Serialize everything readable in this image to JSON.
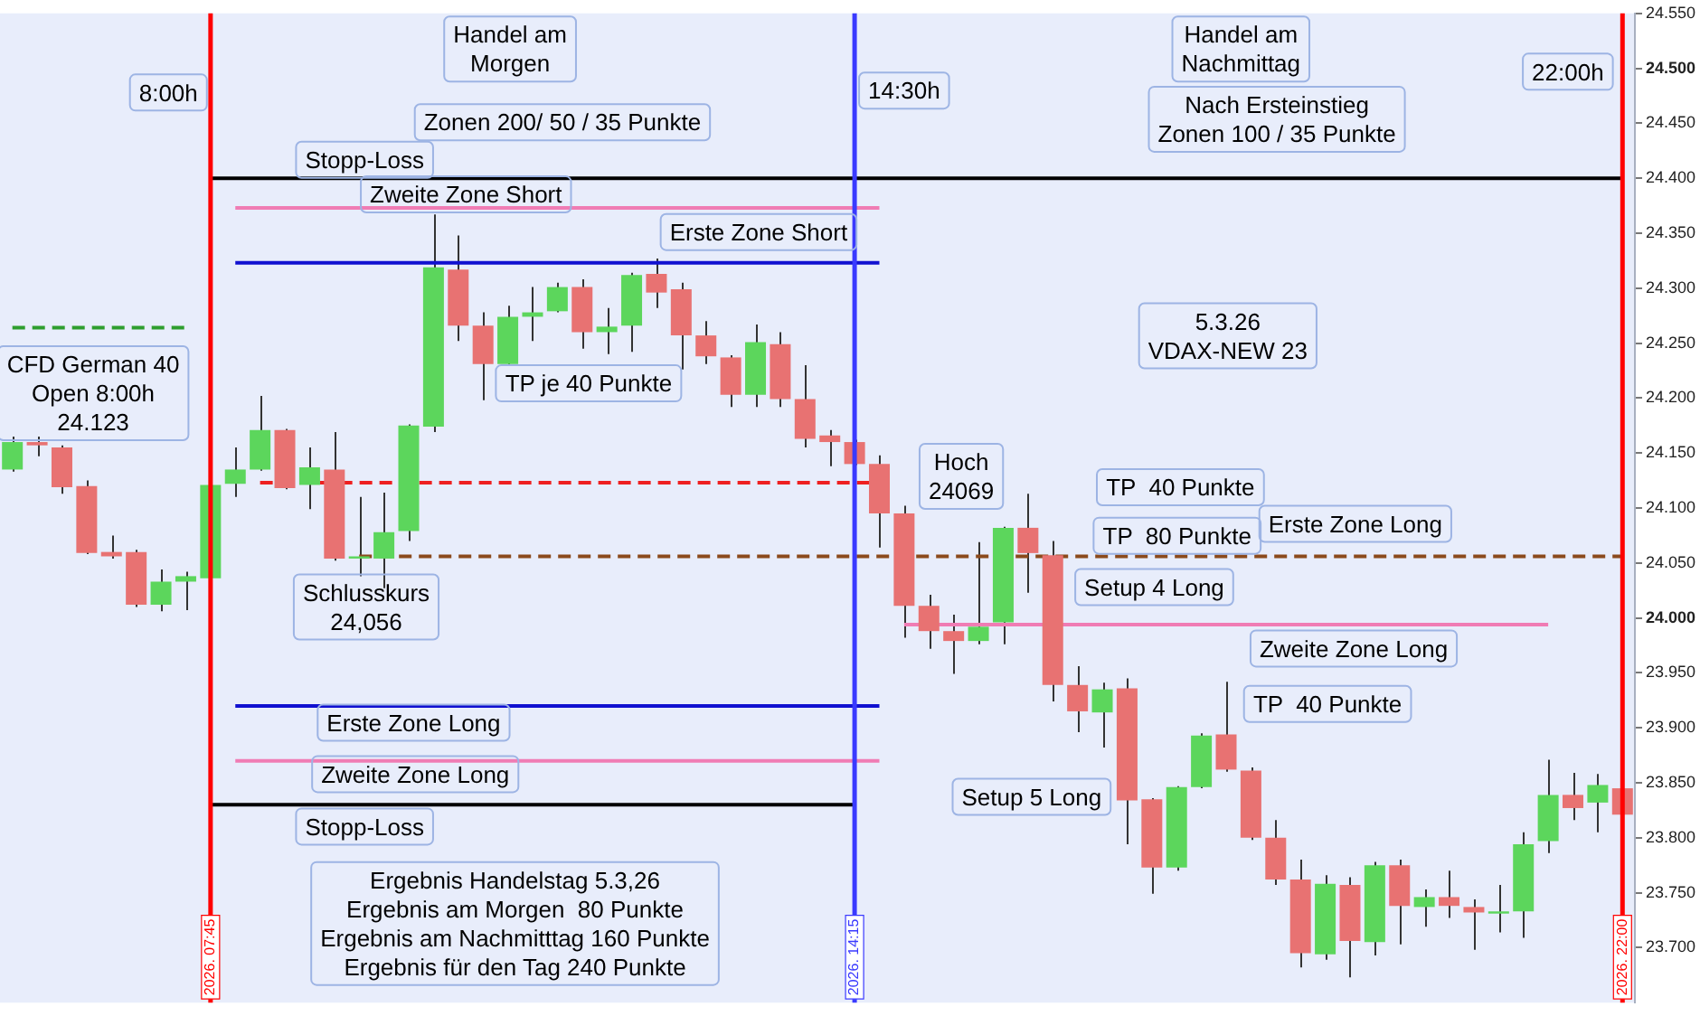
{
  "chart_data": {
    "type": "candlestick",
    "categories": [
      null,
      null,
      null,
      null,
      null,
      null,
      null,
      null,
      "2026. 07:45",
      null,
      null,
      null,
      null,
      null,
      null,
      null,
      null,
      null,
      null,
      null,
      null,
      null,
      null,
      null,
      null,
      null,
      null,
      null,
      null,
      null,
      null,
      null,
      null,
      null,
      "2026. 14:15",
      null,
      null,
      null,
      null,
      null,
      null,
      null,
      null,
      null,
      null,
      null,
      null,
      null,
      null,
      null,
      null,
      null,
      null,
      null,
      null,
      null,
      null,
      null,
      null,
      null,
      null,
      null,
      null,
      null,
      null,
      "2026. 22:00"
    ],
    "ohlc": [
      [
        24.135,
        24.165,
        24.133,
        24.16
      ],
      [
        24.16,
        24.165,
        24.147,
        24.157
      ],
      [
        24.155,
        24.157,
        24.113,
        24.119
      ],
      [
        24.12,
        24.125,
        24.058,
        24.059
      ],
      [
        24.06,
        24.075,
        24.054,
        24.056
      ],
      [
        24.06,
        24.062,
        24.01,
        24.012
      ],
      [
        24.012,
        24.044,
        24.006,
        24.033
      ],
      [
        24.033,
        24.042,
        24.007,
        24.038
      ],
      [
        24.036,
        24.122,
        24.034,
        24.121
      ],
      [
        24.122,
        24.155,
        24.11,
        24.135
      ],
      [
        24.135,
        24.202,
        24.134,
        24.171
      ],
      [
        24.171,
        24.172,
        24.117,
        24.118
      ],
      [
        24.121,
        24.155,
        24.099,
        24.137
      ],
      [
        24.135,
        24.169,
        24.052,
        24.054
      ],
      [
        24.054,
        24.11,
        24.038,
        24.056
      ],
      [
        24.054,
        24.114,
        24.027,
        24.078
      ],
      [
        24.079,
        24.176,
        24.07,
        24.175
      ],
      [
        24.174,
        24.367,
        24.169,
        24.319
      ],
      [
        24.317,
        24.348,
        24.252,
        24.266
      ],
      [
        24.266,
        24.278,
        24.198,
        24.231
      ],
      [
        24.231,
        24.284,
        24.23,
        24.274
      ],
      [
        24.274,
        24.301,
        24.252,
        24.278
      ],
      [
        24.279,
        24.305,
        24.278,
        24.301
      ],
      [
        24.301,
        24.308,
        24.245,
        24.26
      ],
      [
        24.26,
        24.282,
        24.24,
        24.265
      ],
      [
        24.266,
        24.314,
        24.242,
        24.312
      ],
      [
        24.313,
        24.327,
        24.282,
        24.296
      ],
      [
        24.299,
        24.305,
        24.226,
        24.257
      ],
      [
        24.257,
        24.27,
        24.231,
        24.238
      ],
      [
        24.237,
        24.239,
        24.192,
        24.203
      ],
      [
        24.203,
        24.267,
        24.192,
        24.251
      ],
      [
        24.249,
        24.26,
        24.192,
        24.199
      ],
      [
        24.199,
        24.23,
        24.155,
        24.163
      ],
      [
        24.166,
        24.171,
        24.138,
        24.16
      ],
      [
        24.16,
        24.162,
        24.139,
        24.14
      ],
      [
        24.14,
        24.148,
        24.064,
        24.095
      ],
      [
        24.095,
        24.102,
        23.982,
        24.011
      ],
      [
        24.011,
        24.021,
        23.972,
        23.988
      ],
      [
        23.988,
        24.003,
        23.949,
        23.979
      ],
      [
        23.979,
        24.069,
        23.976,
        23.992
      ],
      [
        23.996,
        24.083,
        23.976,
        24.082
      ],
      [
        24.082,
        24.113,
        24.023,
        24.059
      ],
      [
        24.057,
        24.07,
        23.924,
        23.939
      ],
      [
        23.939,
        23.956,
        23.896,
        23.915
      ],
      [
        23.914,
        23.941,
        23.882,
        23.935
      ],
      [
        23.936,
        23.945,
        23.794,
        23.834
      ],
      [
        23.835,
        23.836,
        23.749,
        23.773
      ],
      [
        23.773,
        23.847,
        23.77,
        23.846
      ],
      [
        23.846,
        23.895,
        23.845,
        23.893
      ],
      [
        23.894,
        23.942,
        23.86,
        23.862
      ],
      [
        23.861,
        23.864,
        23.798,
        23.8
      ],
      [
        23.8,
        23.816,
        23.757,
        23.762
      ],
      [
        23.762,
        23.78,
        23.682,
        23.695
      ],
      [
        23.694,
        23.766,
        23.689,
        23.758
      ],
      [
        23.757,
        23.764,
        23.673,
        23.706
      ],
      [
        23.705,
        23.778,
        23.693,
        23.775
      ],
      [
        23.775,
        23.78,
        23.703,
        23.738
      ],
      [
        23.737,
        23.753,
        23.719,
        23.746
      ],
      [
        23.746,
        23.77,
        23.727,
        23.738
      ],
      [
        23.737,
        23.744,
        23.698,
        23.732
      ],
      [
        23.731,
        23.757,
        23.714,
        23.733
      ],
      [
        23.733,
        23.805,
        23.709,
        23.794
      ],
      [
        23.797,
        23.871,
        23.786,
        23.839
      ],
      [
        23.839,
        23.859,
        23.816,
        23.827
      ],
      [
        23.832,
        23.858,
        23.805,
        23.848
      ],
      [
        23.845,
        23.846,
        23.82,
        23.821
      ]
    ],
    "colors": [
      "#5cd65c",
      "#e87272",
      "#e87272",
      "#e87272",
      "#e87272",
      "#e87272",
      "#5cd65c",
      "#5cd65c",
      "#5cd65c",
      "#5cd65c",
      "#5cd65c",
      "#e87272",
      "#5cd65c",
      "#e87272",
      "#5cd65c",
      "#5cd65c",
      "#5cd65c",
      "#5cd65c",
      "#e87272",
      "#e87272",
      "#5cd65c",
      "#5cd65c",
      "#5cd65c",
      "#e87272",
      "#5cd65c",
      "#5cd65c",
      "#e87272",
      "#e87272",
      "#e87272",
      "#e87272",
      "#5cd65c",
      "#e87272",
      "#e87272",
      "#e87272",
      "#e87272",
      "#e87272",
      "#e87272",
      "#e87272",
      "#e87272",
      "#5cd65c",
      "#5cd65c",
      "#e87272",
      "#e87272",
      "#e87272",
      "#5cd65c",
      "#e87272",
      "#e87272",
      "#5cd65c",
      "#5cd65c",
      "#e87272",
      "#e87272",
      "#e87272",
      "#e87272",
      "#5cd65c",
      "#e87272",
      "#5cd65c",
      "#e87272",
      "#5cd65c",
      "#e87272",
      "#e87272",
      "#5cd65c",
      "#5cd65c",
      "#5cd65c",
      "#e87272",
      "#5cd65c",
      "#e87272"
    ],
    "series": [
      {
        "type": "line",
        "color": "#2e9e2e",
        "line_style": "dashed",
        "values": [
          24.264,
          24.264,
          24.264,
          24.264,
          24.264,
          24.264,
          24.264,
          24.264,
          null,
          null,
          null,
          null,
          null,
          null,
          null,
          null,
          null,
          null,
          null,
          null,
          null,
          null,
          null,
          null,
          null,
          null,
          null,
          null,
          null,
          null,
          null,
          null,
          null,
          null,
          null,
          null,
          null,
          null,
          null,
          null,
          null,
          null,
          null,
          null,
          null,
          null,
          null,
          null,
          null,
          null,
          null,
          null,
          null,
          null,
          null,
          null,
          null,
          null,
          null,
          null,
          null,
          null,
          null,
          null,
          null,
          null
        ]
      },
      {
        "type": "line",
        "color": "#000000",
        "line_style": "solid",
        "values": [
          null,
          null,
          null,
          null,
          null,
          null,
          null,
          null,
          24.4,
          24.4,
          24.4,
          24.4,
          24.4,
          24.4,
          24.4,
          24.4,
          24.4,
          24.4,
          24.4,
          24.4,
          24.4,
          24.4,
          24.4,
          24.4,
          24.4,
          24.4,
          24.4,
          24.4,
          24.4,
          24.4,
          24.4,
          24.4,
          24.4,
          24.4,
          24.4,
          24.4,
          24.4,
          24.4,
          24.4,
          24.4,
          24.4,
          24.4,
          24.4,
          24.4,
          24.4,
          24.4,
          24.4,
          24.4,
          24.4,
          24.4,
          24.4,
          24.4,
          24.4,
          24.4,
          24.4,
          24.4,
          24.4,
          24.4,
          24.4,
          24.4,
          24.4,
          24.4,
          24.4,
          24.4,
          24.4,
          24.4
        ]
      },
      {
        "type": "line",
        "color": "#f07cb4",
        "line_style": "solid",
        "values": [
          null,
          null,
          null,
          null,
          null,
          null,
          null,
          null,
          null,
          24.373,
          24.373,
          24.373,
          24.373,
          24.373,
          24.373,
          24.373,
          24.373,
          24.373,
          24.373,
          24.373,
          24.373,
          24.373,
          24.373,
          24.373,
          24.373,
          24.373,
          24.373,
          24.373,
          24.373,
          24.373,
          24.373,
          24.373,
          24.373,
          24.373,
          24.373,
          24.373,
          null,
          null,
          null,
          null,
          null,
          null,
          null,
          null,
          null,
          null,
          null,
          null,
          null,
          null,
          null,
          null,
          null,
          null,
          null,
          null,
          null,
          null,
          null,
          null,
          null,
          null,
          null,
          null,
          null,
          null
        ]
      },
      {
        "type": "line",
        "color": "#1010d0",
        "line_style": "solid",
        "values": [
          null,
          null,
          null,
          null,
          null,
          null,
          null,
          null,
          null,
          24.323,
          24.323,
          24.323,
          24.323,
          24.323,
          24.323,
          24.323,
          24.323,
          24.323,
          24.323,
          24.323,
          24.323,
          24.323,
          24.323,
          24.323,
          24.323,
          24.323,
          24.323,
          24.323,
          24.323,
          24.323,
          24.323,
          24.323,
          24.323,
          24.323,
          24.323,
          24.323,
          null,
          null,
          null,
          null,
          null,
          null,
          null,
          null,
          null,
          null,
          null,
          null,
          null,
          null,
          null,
          null,
          null,
          null,
          null,
          null,
          null,
          null,
          null,
          null,
          null,
          null,
          null,
          null,
          null,
          null
        ]
      },
      {
        "type": "line",
        "color": "#ee2020",
        "line_style": "dashed",
        "values": [
          null,
          null,
          null,
          null,
          null,
          null,
          null,
          null,
          null,
          null,
          24.123,
          24.123,
          24.123,
          24.123,
          24.123,
          24.123,
          null,
          24.123,
          24.123,
          24.123,
          24.123,
          24.123,
          24.123,
          24.123,
          24.123,
          24.123,
          24.123,
          24.123,
          24.123,
          24.123,
          24.123,
          24.123,
          24.123,
          24.123,
          24.123,
          24.123,
          null,
          null,
          null,
          null,
          null,
          null,
          null,
          null,
          null,
          null,
          null,
          null,
          null,
          null,
          null,
          null,
          null,
          null,
          null,
          null,
          null,
          null,
          null,
          null,
          null,
          null,
          null,
          null,
          null,
          null
        ]
      },
      {
        "type": "line",
        "color": "#8b4a1c",
        "line_style": "dashed",
        "values": [
          null,
          null,
          null,
          null,
          null,
          null,
          null,
          null,
          null,
          null,
          null,
          null,
          null,
          null,
          24.056,
          null,
          24.056,
          24.056,
          24.056,
          24.056,
          24.056,
          24.056,
          24.056,
          24.056,
          24.056,
          24.056,
          24.056,
          24.056,
          24.056,
          24.056,
          24.056,
          24.056,
          24.056,
          24.056,
          24.056,
          24.056,
          null,
          24.056,
          24.056,
          24.056,
          null,
          24.056,
          24.056,
          24.056,
          24.056,
          24.056,
          24.056,
          24.056,
          24.056,
          24.056,
          24.056,
          24.056,
          24.056,
          24.056,
          24.056,
          24.056,
          24.056,
          24.056,
          24.056,
          24.056,
          24.056,
          24.056,
          24.056,
          24.056,
          24.056,
          24.056
        ]
      },
      {
        "type": "line",
        "color": "#f07cb4",
        "line_style": "solid",
        "values": [
          null,
          null,
          null,
          null,
          null,
          null,
          null,
          null,
          null,
          null,
          null,
          null,
          null,
          null,
          null,
          null,
          null,
          null,
          null,
          null,
          null,
          null,
          null,
          null,
          null,
          null,
          null,
          null,
          null,
          null,
          null,
          null,
          null,
          null,
          null,
          null,
          23.994,
          23.994,
          23.994,
          23.994,
          23.994,
          23.994,
          null,
          23.994,
          23.994,
          23.994,
          23.994,
          23.994,
          23.994,
          23.994,
          23.994,
          23.994,
          23.994,
          23.994,
          23.994,
          23.994,
          23.994,
          23.994,
          23.994,
          23.994,
          23.994,
          23.994,
          23.994,
          null,
          null,
          null
        ]
      },
      {
        "type": "line",
        "color": "#1010d0",
        "line_style": "solid",
        "values": [
          null,
          null,
          null,
          null,
          null,
          null,
          null,
          null,
          null,
          23.92,
          23.92,
          23.92,
          23.92,
          23.92,
          23.92,
          23.92,
          23.92,
          23.92,
          23.92,
          23.92,
          23.92,
          23.92,
          23.92,
          23.92,
          23.92,
          23.92,
          23.92,
          23.92,
          23.92,
          23.92,
          23.92,
          23.92,
          23.92,
          23.92,
          23.92,
          23.92,
          null,
          null,
          null,
          null,
          null,
          null,
          null,
          null,
          null,
          null,
          null,
          null,
          null,
          null,
          null,
          null,
          null,
          null,
          null,
          null,
          null,
          null,
          null,
          null,
          null,
          null,
          null,
          null,
          null,
          null
        ]
      },
      {
        "type": "line",
        "color": "#f07cb4",
        "line_style": "solid",
        "values": [
          null,
          null,
          null,
          null,
          null,
          null,
          null,
          null,
          null,
          23.87,
          23.87,
          23.87,
          23.87,
          23.87,
          23.87,
          23.87,
          23.87,
          23.87,
          23.87,
          23.87,
          23.87,
          23.87,
          23.87,
          23.87,
          23.87,
          23.87,
          23.87,
          23.87,
          23.87,
          23.87,
          23.87,
          23.87,
          23.87,
          23.87,
          23.87,
          23.87,
          null,
          null,
          null,
          null,
          null,
          null,
          null,
          null,
          null,
          null,
          null,
          null,
          null,
          null,
          null,
          null,
          null,
          null,
          null,
          null,
          null,
          null,
          null,
          null,
          null,
          null,
          null,
          null,
          null,
          null
        ]
      },
      {
        "type": "line",
        "color": "#000000",
        "line_style": "solid",
        "values": [
          null,
          null,
          null,
          null,
          null,
          null,
          null,
          null,
          23.83,
          23.83,
          23.83,
          23.83,
          23.83,
          23.83,
          23.83,
          23.83,
          23.83,
          23.83,
          23.83,
          23.83,
          23.83,
          23.83,
          23.83,
          23.83,
          23.83,
          23.83,
          23.83,
          23.83,
          23.83,
          23.83,
          23.83,
          23.83,
          23.83,
          23.83,
          23.83,
          null,
          null,
          null,
          null,
          null,
          null,
          null,
          null,
          null,
          null,
          null,
          null,
          null,
          null,
          null,
          null,
          null,
          null,
          null,
          null,
          null,
          null,
          null,
          null,
          null,
          null,
          null,
          null,
          null,
          null,
          null
        ]
      }
    ],
    "ylim": [
      23.65,
      24.55
    ],
    "yticks": [
      {
        "value": 23.7,
        "label": "23.700"
      },
      {
        "value": 23.75,
        "label": "23.750"
      },
      {
        "value": 23.8,
        "label": "23.800"
      },
      {
        "value": 23.85,
        "label": "23.850"
      },
      {
        "value": 23.9,
        "label": "23.900"
      },
      {
        "value": 23.95,
        "label": "23.950"
      },
      {
        "value": 24.0,
        "label": "24.000"
      },
      {
        "value": 24.05,
        "label": "24.050"
      },
      {
        "value": 24.1,
        "label": "24.100"
      },
      {
        "value": 24.15,
        "label": "24.150"
      },
      {
        "value": 24.2,
        "label": "24.200"
      },
      {
        "value": 24.25,
        "label": "24.250"
      },
      {
        "value": 24.3,
        "label": "24.300"
      },
      {
        "value": 24.35,
        "label": "24.350"
      },
      {
        "value": 24.4,
        "label": "24.400"
      },
      {
        "value": 24.45,
        "label": "24.450"
      },
      {
        "value": 24.5,
        "label": "24.500"
      },
      {
        "value": 24.55,
        "label": "24.550"
      }
    ],
    "marker": "none",
    "ref_lines": [
      {
        "axis": "x",
        "value": "2026. 07:45",
        "color": "#ff0000"
      },
      {
        "axis": "x",
        "value": "2026. 14:15",
        "color": "#3a3aff"
      },
      {
        "axis": "x",
        "value": "2026. 22:00",
        "color": "#ff0000"
      }
    ],
    "annotations": [
      "8:00h",
      "Handel am\nMorgen",
      "14:30h",
      "Handel am\nNachmittag",
      "22:00h",
      "Zonen 200/ 50 / 35 Punkte",
      "Nach Ersteinstieg\nZonen 100 / 35 Punkte",
      "Stopp-Loss",
      "Zweite Zone Short",
      "Erste Zone Short",
      "5.3.26\nVDAX-NEW 23",
      "TP je 40 Punkte",
      "CFD German 40\nOpen 8:00h\n24.123",
      "Hoch\n24069",
      "TP  40 Punkte",
      "TP  80 Punkte",
      "Erste Zone Long",
      "Setup 4 Long",
      "Schlusskurs\n24,056",
      "Zweite Zone Long",
      "TP  40 Punkte",
      "Erste Zone Long",
      "Zweite Zone Long",
      "Setup 5 Long",
      "Stopp-Loss",
      "Ergebnis Handelstag 5.3,26\nErgebnis am Morgen  80 Punkte\nErgebnis am Nachmitttag 160 Punkte\nErgebnis für den Tag 240 Punkte"
    ]
  }
}
